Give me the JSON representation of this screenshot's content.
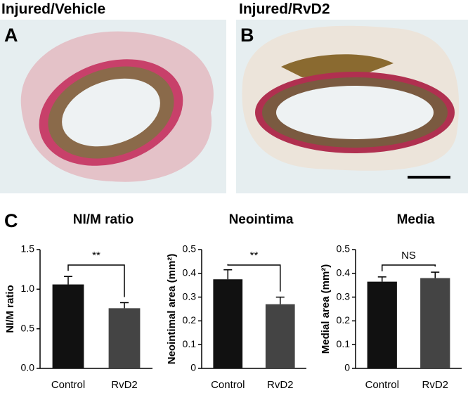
{
  "panels": [
    {
      "letter": "A",
      "title": "Injured/Vehicle"
    },
    {
      "letter": "B",
      "title": "Injured/RvD2"
    },
    {
      "letter": "C"
    }
  ],
  "chart_data": [
    {
      "type": "bar",
      "title": "NI/M ratio",
      "y_label": "NI/M ratio",
      "categories": [
        "Control",
        "RvD2"
      ],
      "values": [
        1.06,
        0.76
      ],
      "errors": [
        0.1,
        0.07
      ],
      "colors": [
        "#111111",
        "#444444"
      ],
      "ylim": [
        0,
        1.5
      ],
      "yticks": [
        {
          "value": 0,
          "label": "0.0"
        },
        0.5,
        {
          "value": 1,
          "label": "1.0"
        },
        1.5
      ],
      "annotation": "**"
    },
    {
      "type": "bar",
      "title": "Neointima",
      "y_label": "Neointimal area (mm²)",
      "categories": [
        "Control",
        "RvD2"
      ],
      "values": [
        0.375,
        0.27
      ],
      "errors": [
        0.04,
        0.03
      ],
      "colors": [
        "#111111",
        "#444444"
      ],
      "ylim": [
        0,
        0.5
      ],
      "yticks": [
        0,
        0.1,
        0.2,
        0.3,
        0.4,
        0.5
      ],
      "annotation": "**"
    },
    {
      "type": "bar",
      "title": "Media",
      "y_label": "Medial area (mm²)",
      "categories": [
        "Control",
        "RvD2"
      ],
      "values": [
        0.365,
        0.38
      ],
      "errors": [
        0.02,
        0.025
      ],
      "colors": [
        "#111111",
        "#444444"
      ],
      "ylim": [
        0,
        0.5
      ],
      "yticks": [
        0,
        0.1,
        0.2,
        0.3,
        0.4,
        0.5
      ],
      "annotation": "NS"
    }
  ]
}
